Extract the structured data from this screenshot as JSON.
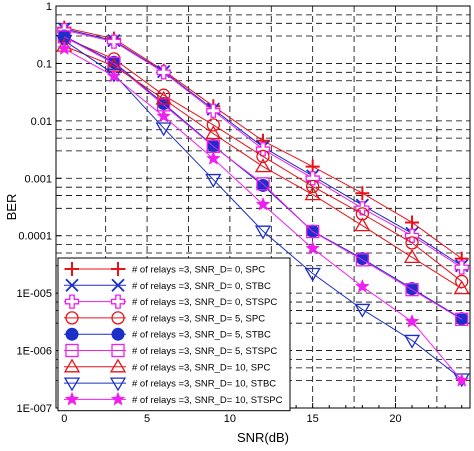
{
  "chart_data": {
    "type": "line",
    "xlabel": "SNR(dB)",
    "ylabel": "BER",
    "xlim": [
      -0.5,
      24.5
    ],
    "ylim_log10": [
      -7,
      0
    ],
    "log_y": true,
    "grid": true,
    "legend_position": "bottom-left",
    "x_ticks": [
      0,
      5,
      10,
      15,
      20
    ],
    "y_ticks": [
      1,
      0.1,
      0.01,
      0.001,
      0.0001,
      1e-05,
      1e-06,
      1e-07
    ],
    "y_tick_labels": [
      "1",
      "0.1",
      "0.01",
      "0.001",
      "0.0001",
      "1E-005",
      "1E-006",
      "1E-007"
    ],
    "x": [
      0,
      3,
      6,
      9,
      12,
      15,
      18,
      21,
      24
    ],
    "series": [
      {
        "name": "# of relays =3, SNR_D= 0, SPC",
        "color": "#e8121b",
        "marker": "plus",
        "values": [
          0.42,
          0.27,
          0.075,
          0.018,
          0.0045,
          0.0016,
          0.00055,
          0.00017,
          4e-05
        ]
      },
      {
        "name": "# of relays =3, SNR_D= 0, STBC",
        "color": "#1c2fc8",
        "marker": "x",
        "values": [
          0.4,
          0.25,
          0.072,
          0.016,
          0.0035,
          0.0011,
          0.00034,
          0.00011,
          3e-05
        ]
      },
      {
        "name": "# of relays =3, SNR_D= 0, STSPC",
        "color": "#f01ef0",
        "marker": "openplus",
        "values": [
          0.38,
          0.24,
          0.07,
          0.015,
          0.0032,
          0.001,
          0.0003,
          0.0001,
          2.8e-05
        ]
      },
      {
        "name": "# of relays =3, SNR_D= 5, SPC",
        "color": "#e8121b",
        "marker": "circle",
        "values": [
          0.28,
          0.12,
          0.028,
          0.0085,
          0.0024,
          0.00072,
          0.00024,
          7.5e-05,
          1.6e-05
        ]
      },
      {
        "name": "# of relays =3, SNR_D= 5, STBC",
        "color": "#1c2fc8",
        "marker": "dot",
        "values": [
          0.3,
          0.105,
          0.02,
          0.0037,
          0.00075,
          0.00012,
          4e-05,
          1.2e-05,
          3.6e-06
        ]
      },
      {
        "name": "# of relays =3, SNR_D= 5, STSPC",
        "color": "#f01ef0",
        "marker": "square",
        "values": [
          0.29,
          0.1,
          0.019,
          0.0036,
          0.0008,
          0.000118,
          3.8e-05,
          1.15e-05,
          3.5e-06
        ]
      },
      {
        "name": "# of relays =3, SNR_D= 10, SPC",
        "color": "#e8121b",
        "marker": "triangle",
        "values": [
          0.2,
          0.09,
          0.024,
          0.006,
          0.0016,
          0.00052,
          0.00015,
          4.2e-05,
          1.2e-05
        ]
      },
      {
        "name": "# of relays =3, SNR_D= 10, STBC",
        "color": "#1c2fc8",
        "marker": "downtriangle",
        "values": [
          0.25,
          0.065,
          0.0075,
          0.00095,
          0.00012,
          2.2e-05,
          5.2e-06,
          1.5e-06,
          3.2e-07
        ]
      },
      {
        "name": "# of relays =3, SNR_D= 10, STSPC",
        "color": "#f01ef0",
        "marker": "star",
        "values": [
          0.18,
          0.06,
          0.012,
          0.0022,
          0.00035,
          6e-05,
          1.3e-05,
          3.2e-06,
          3e-07
        ]
      }
    ]
  }
}
